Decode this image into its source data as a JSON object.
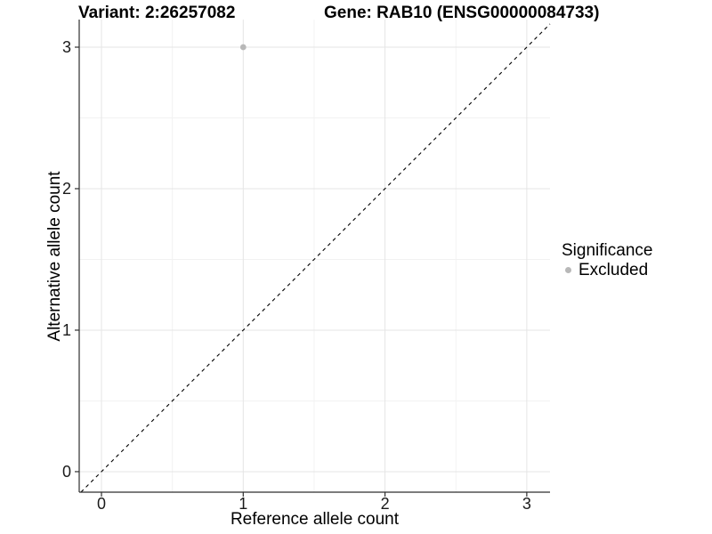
{
  "chart_data": {
    "type": "scatter",
    "titles": {
      "left": "Variant: 2:26257082",
      "right": "Gene: RAB10 (ENSG00000084733)"
    },
    "xlabel": "Reference allele count",
    "ylabel": "Alternative allele count",
    "x_ticks": [
      0,
      1,
      2,
      3
    ],
    "y_ticks": [
      0,
      1,
      2,
      3
    ],
    "xlim": [
      -0.157,
      3.164
    ],
    "ylim": [
      -0.145,
      3.195
    ],
    "grid": {
      "major": [
        0,
        1,
        2,
        3
      ],
      "minor": [
        0.5,
        1.5,
        2.5
      ],
      "on": true
    },
    "series": [
      {
        "name": "Excluded",
        "color": "#b8b8b8",
        "points": [
          {
            "x": 1,
            "y": 3
          }
        ]
      }
    ],
    "identity_line": {
      "slope": 1,
      "intercept": 0,
      "style": "dashed",
      "color": "#000000"
    },
    "legend": {
      "title": "Significance",
      "position": "right",
      "entries": [
        {
          "label": "Excluded",
          "color": "#b8b8b8"
        }
      ]
    }
  }
}
